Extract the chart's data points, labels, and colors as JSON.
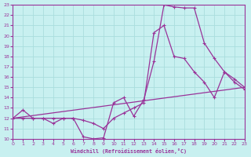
{
  "bg_color": "#c8f0f0",
  "line_color": "#993399",
  "grid_color": "#aadddd",
  "xlim": [
    0,
    23
  ],
  "ylim": [
    10,
    23
  ],
  "xticks": [
    0,
    1,
    2,
    3,
    4,
    5,
    6,
    7,
    8,
    9,
    10,
    11,
    12,
    13,
    14,
    15,
    16,
    17,
    18,
    19,
    20,
    21,
    22,
    23
  ],
  "yticks": [
    10,
    11,
    12,
    13,
    14,
    15,
    16,
    17,
    18,
    19,
    20,
    21,
    22,
    23
  ],
  "xlabel": "Windchill (Refroidissement éolien,°C)",
  "line1_x": [
    0,
    1,
    2,
    3,
    4,
    5,
    6,
    7,
    8,
    9,
    10,
    11,
    12,
    13,
    14,
    15,
    16,
    17,
    18,
    19,
    20,
    21,
    22,
    23
  ],
  "line1_y": [
    12,
    12.8,
    12,
    12,
    11.5,
    12,
    12,
    10.2,
    10.0,
    10.1,
    13.5,
    14.0,
    12.2,
    13.8,
    17.5,
    23.0,
    22.8,
    22.7,
    22.7,
    19.3,
    17.8,
    16.5,
    15.5,
    14.8
  ],
  "line2_x": [
    0,
    1,
    2,
    3,
    4,
    5,
    6,
    7,
    8,
    9,
    10,
    11,
    12,
    13,
    14,
    15,
    16,
    17,
    18,
    19,
    20,
    21,
    22,
    23
  ],
  "line2_y": [
    12,
    12.0,
    12.0,
    12.0,
    12.0,
    12.0,
    12.0,
    11.8,
    11.5,
    11.0,
    12.0,
    12.5,
    13.0,
    13.5,
    20.3,
    21.0,
    18.0,
    17.8,
    16.5,
    15.5,
    14.0,
    16.5,
    15.8,
    15.0
  ],
  "line3_x": [
    0,
    23
  ],
  "line3_y": [
    12.0,
    15.0
  ]
}
